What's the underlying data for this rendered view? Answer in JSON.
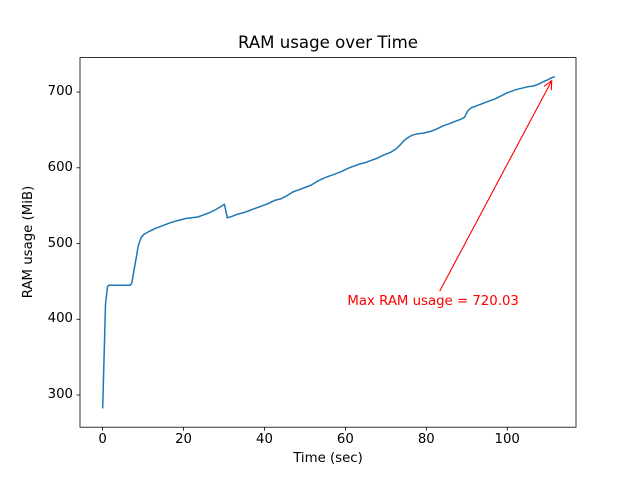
{
  "figure": {
    "background": "#ffffff",
    "text_color": "#000000"
  },
  "chart_data": {
    "type": "line",
    "title": "RAM usage over Time",
    "xlabel": "Time (sec)",
    "ylabel": "RAM usage (MiB)",
    "grid": false,
    "legend": "none",
    "x_ticks": [
      0,
      20,
      40,
      60,
      80,
      100
    ],
    "y_ticks": [
      300,
      400,
      500,
      600,
      700
    ],
    "xlim": [
      -5.6,
      117.0
    ],
    "ylim": [
      257.5,
      745.5
    ],
    "line_color": "#1f77b4",
    "series": [
      {
        "name": "RAM usage",
        "x": [
          0,
          0.7,
          1.2,
          1.5,
          6.8,
          7.2,
          8,
          8.8,
          9.5,
          10.2,
          11.5,
          13,
          15,
          17,
          19,
          20.5,
          22,
          23.5,
          25,
          26.5,
          28,
          29.3,
          30.1,
          30.8,
          32,
          33.5,
          35,
          36.5,
          38,
          39.5,
          41,
          42.5,
          44,
          45.5,
          47,
          48.5,
          50,
          51.5,
          53,
          54.5,
          56,
          57.5,
          59,
          60.5,
          62,
          63.5,
          65,
          66.5,
          68,
          69.5,
          71,
          72.5,
          73.5,
          74.5,
          75.5,
          76.5,
          78,
          79.5,
          81,
          82.5,
          84,
          85.5,
          87,
          88.5,
          89.5,
          90.2,
          91,
          92.5,
          94,
          95.5,
          97,
          98.5,
          100,
          101,
          102,
          103.5,
          105,
          106.5,
          108,
          109,
          110,
          111,
          111.6
        ],
        "y": [
          283,
          420,
          443,
          445,
          445,
          448,
          472,
          497,
          508,
          512,
          516,
          520,
          524,
          528,
          531,
          533,
          534,
          535,
          538,
          541,
          545,
          549,
          552,
          534,
          536,
          539,
          541,
          544,
          547,
          550,
          553,
          557,
          559,
          563,
          568,
          571,
          574,
          577,
          582,
          586,
          589,
          592,
          595,
          599,
          602,
          605,
          607,
          610,
          613,
          617,
          620,
          625,
          630,
          636,
          640,
          643,
          645,
          646,
          648,
          651,
          655,
          658,
          661,
          664,
          667,
          675,
          679,
          682,
          685,
          688,
          691,
          695,
          699,
          701,
          703,
          705,
          707,
          708,
          711,
          714,
          716,
          719,
          720.03
        ]
      }
    ],
    "annotation": {
      "text": "Max RAM usage = 720.03",
      "color": "#ff0000",
      "text_xy": [
        60.5,
        415
      ],
      "arrow_tail_xy": [
        83.3,
        437
      ],
      "arrow_tip_xy": [
        111,
        715
      ]
    }
  }
}
